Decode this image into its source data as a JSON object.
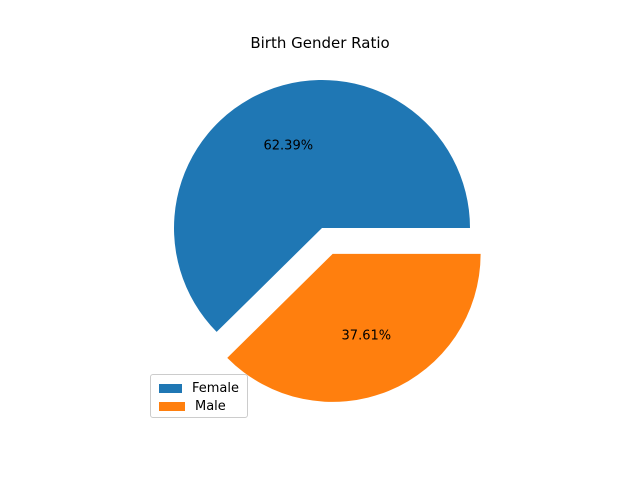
{
  "chart_data": {
    "type": "pie",
    "title": "Birth Gender Ratio",
    "slices": [
      {
        "label": "Female",
        "value": 62.39,
        "pct_label": "62.39%",
        "color": "#1f77b4",
        "exploded": false
      },
      {
        "label": "Male",
        "value": 37.61,
        "pct_label": "37.61%",
        "color": "#ff7f0e",
        "exploded": true
      }
    ],
    "legend": {
      "placement": "lower-left",
      "entries": [
        "Female",
        "Male"
      ]
    }
  }
}
